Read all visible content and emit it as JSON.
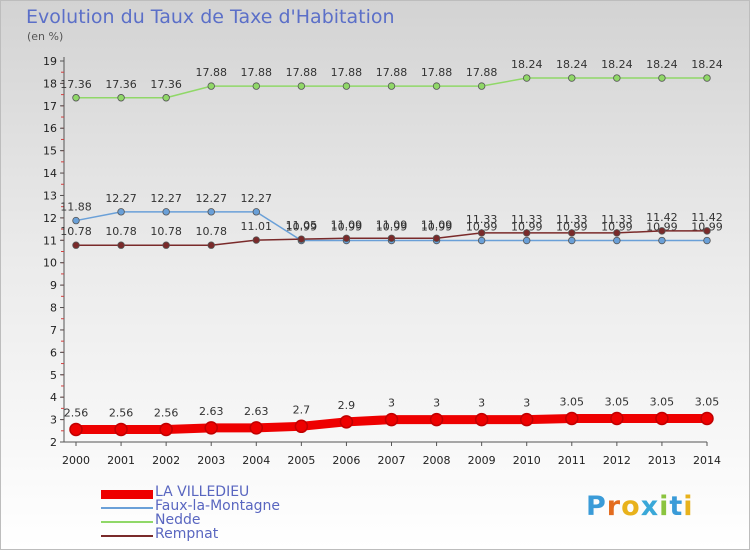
{
  "title": "Evolution du Taux de Taxe d'Habitation",
  "unit": "(en %)",
  "logo": "Proxiti",
  "colors": {
    "title": "#5b6fc8",
    "legend_text": "#5966c0"
  },
  "chart_data": {
    "type": "line",
    "title": "Evolution du Taux de Taxe d'Habitation",
    "ylabel": "(en %)",
    "x": [
      "2000",
      "2001",
      "2002",
      "2003",
      "2004",
      "2005",
      "2006",
      "2007",
      "2008",
      "2009",
      "2010",
      "2011",
      "2012",
      "2013",
      "2014"
    ],
    "ylim": [
      2,
      19
    ],
    "yticks": [
      2,
      3,
      4,
      5,
      6,
      7,
      8,
      9,
      10,
      11,
      12,
      13,
      14,
      15,
      16,
      17,
      18,
      19
    ],
    "grid": false,
    "legend_position": "bottom-left",
    "series": [
      {
        "name": "LA VILLEDIEU",
        "color": "#ee0000",
        "width": 9,
        "values": [
          2.56,
          2.56,
          2.56,
          2.63,
          2.63,
          2.7,
          2.9,
          3,
          3,
          3,
          3,
          3.05,
          3.05,
          3.05,
          3.05
        ],
        "labels": [
          "2.56",
          "2.56",
          "2.56",
          "2.63",
          "2.63",
          "2.7",
          "2.9",
          "3",
          "3",
          "3",
          "3",
          "3.05",
          "3.05",
          "3.05",
          "3.05"
        ]
      },
      {
        "name": "Faux-la-Montagne",
        "color": "#6aa0d8",
        "width": 1.5,
        "values": [
          11.88,
          12.27,
          12.27,
          12.27,
          12.27,
          10.99,
          10.99,
          10.99,
          10.99,
          10.99,
          10.99,
          10.99,
          10.99,
          10.99,
          10.99
        ],
        "labels": [
          "11.88",
          "12.27",
          "12.27",
          "12.27",
          "12.27",
          "10.99",
          "10.99",
          "10.99",
          "10.99",
          "10.99",
          "10.99",
          "10.99",
          "10.99",
          "10.99",
          "10.99"
        ]
      },
      {
        "name": "Nedde",
        "color": "#90d868",
        "width": 1.5,
        "values": [
          17.36,
          17.36,
          17.36,
          17.88,
          17.88,
          17.88,
          17.88,
          17.88,
          17.88,
          17.88,
          18.24,
          18.24,
          18.24,
          18.24,
          18.24
        ],
        "labels": [
          "17.36",
          "17.36",
          "17.36",
          "17.88",
          "17.88",
          "17.88",
          "17.88",
          "17.88",
          "17.88",
          "17.88",
          "18.24",
          "18.24",
          "18.24",
          "18.24",
          "18.24"
        ]
      },
      {
        "name": "Rempnat",
        "color": "#7a2a2a",
        "width": 1.5,
        "values": [
          10.78,
          10.78,
          10.78,
          10.78,
          11.01,
          11.05,
          11.09,
          11.09,
          11.09,
          11.33,
          11.33,
          11.33,
          11.33,
          11.42,
          11.42
        ],
        "labels": [
          "10.78",
          "10.78",
          "10.78",
          "10.78",
          "11.01",
          "11.05",
          "11.09",
          "11.09",
          "11.09",
          "11.33",
          "11.33",
          "11.33",
          "11.33",
          "11.42",
          "11.42"
        ]
      }
    ]
  }
}
